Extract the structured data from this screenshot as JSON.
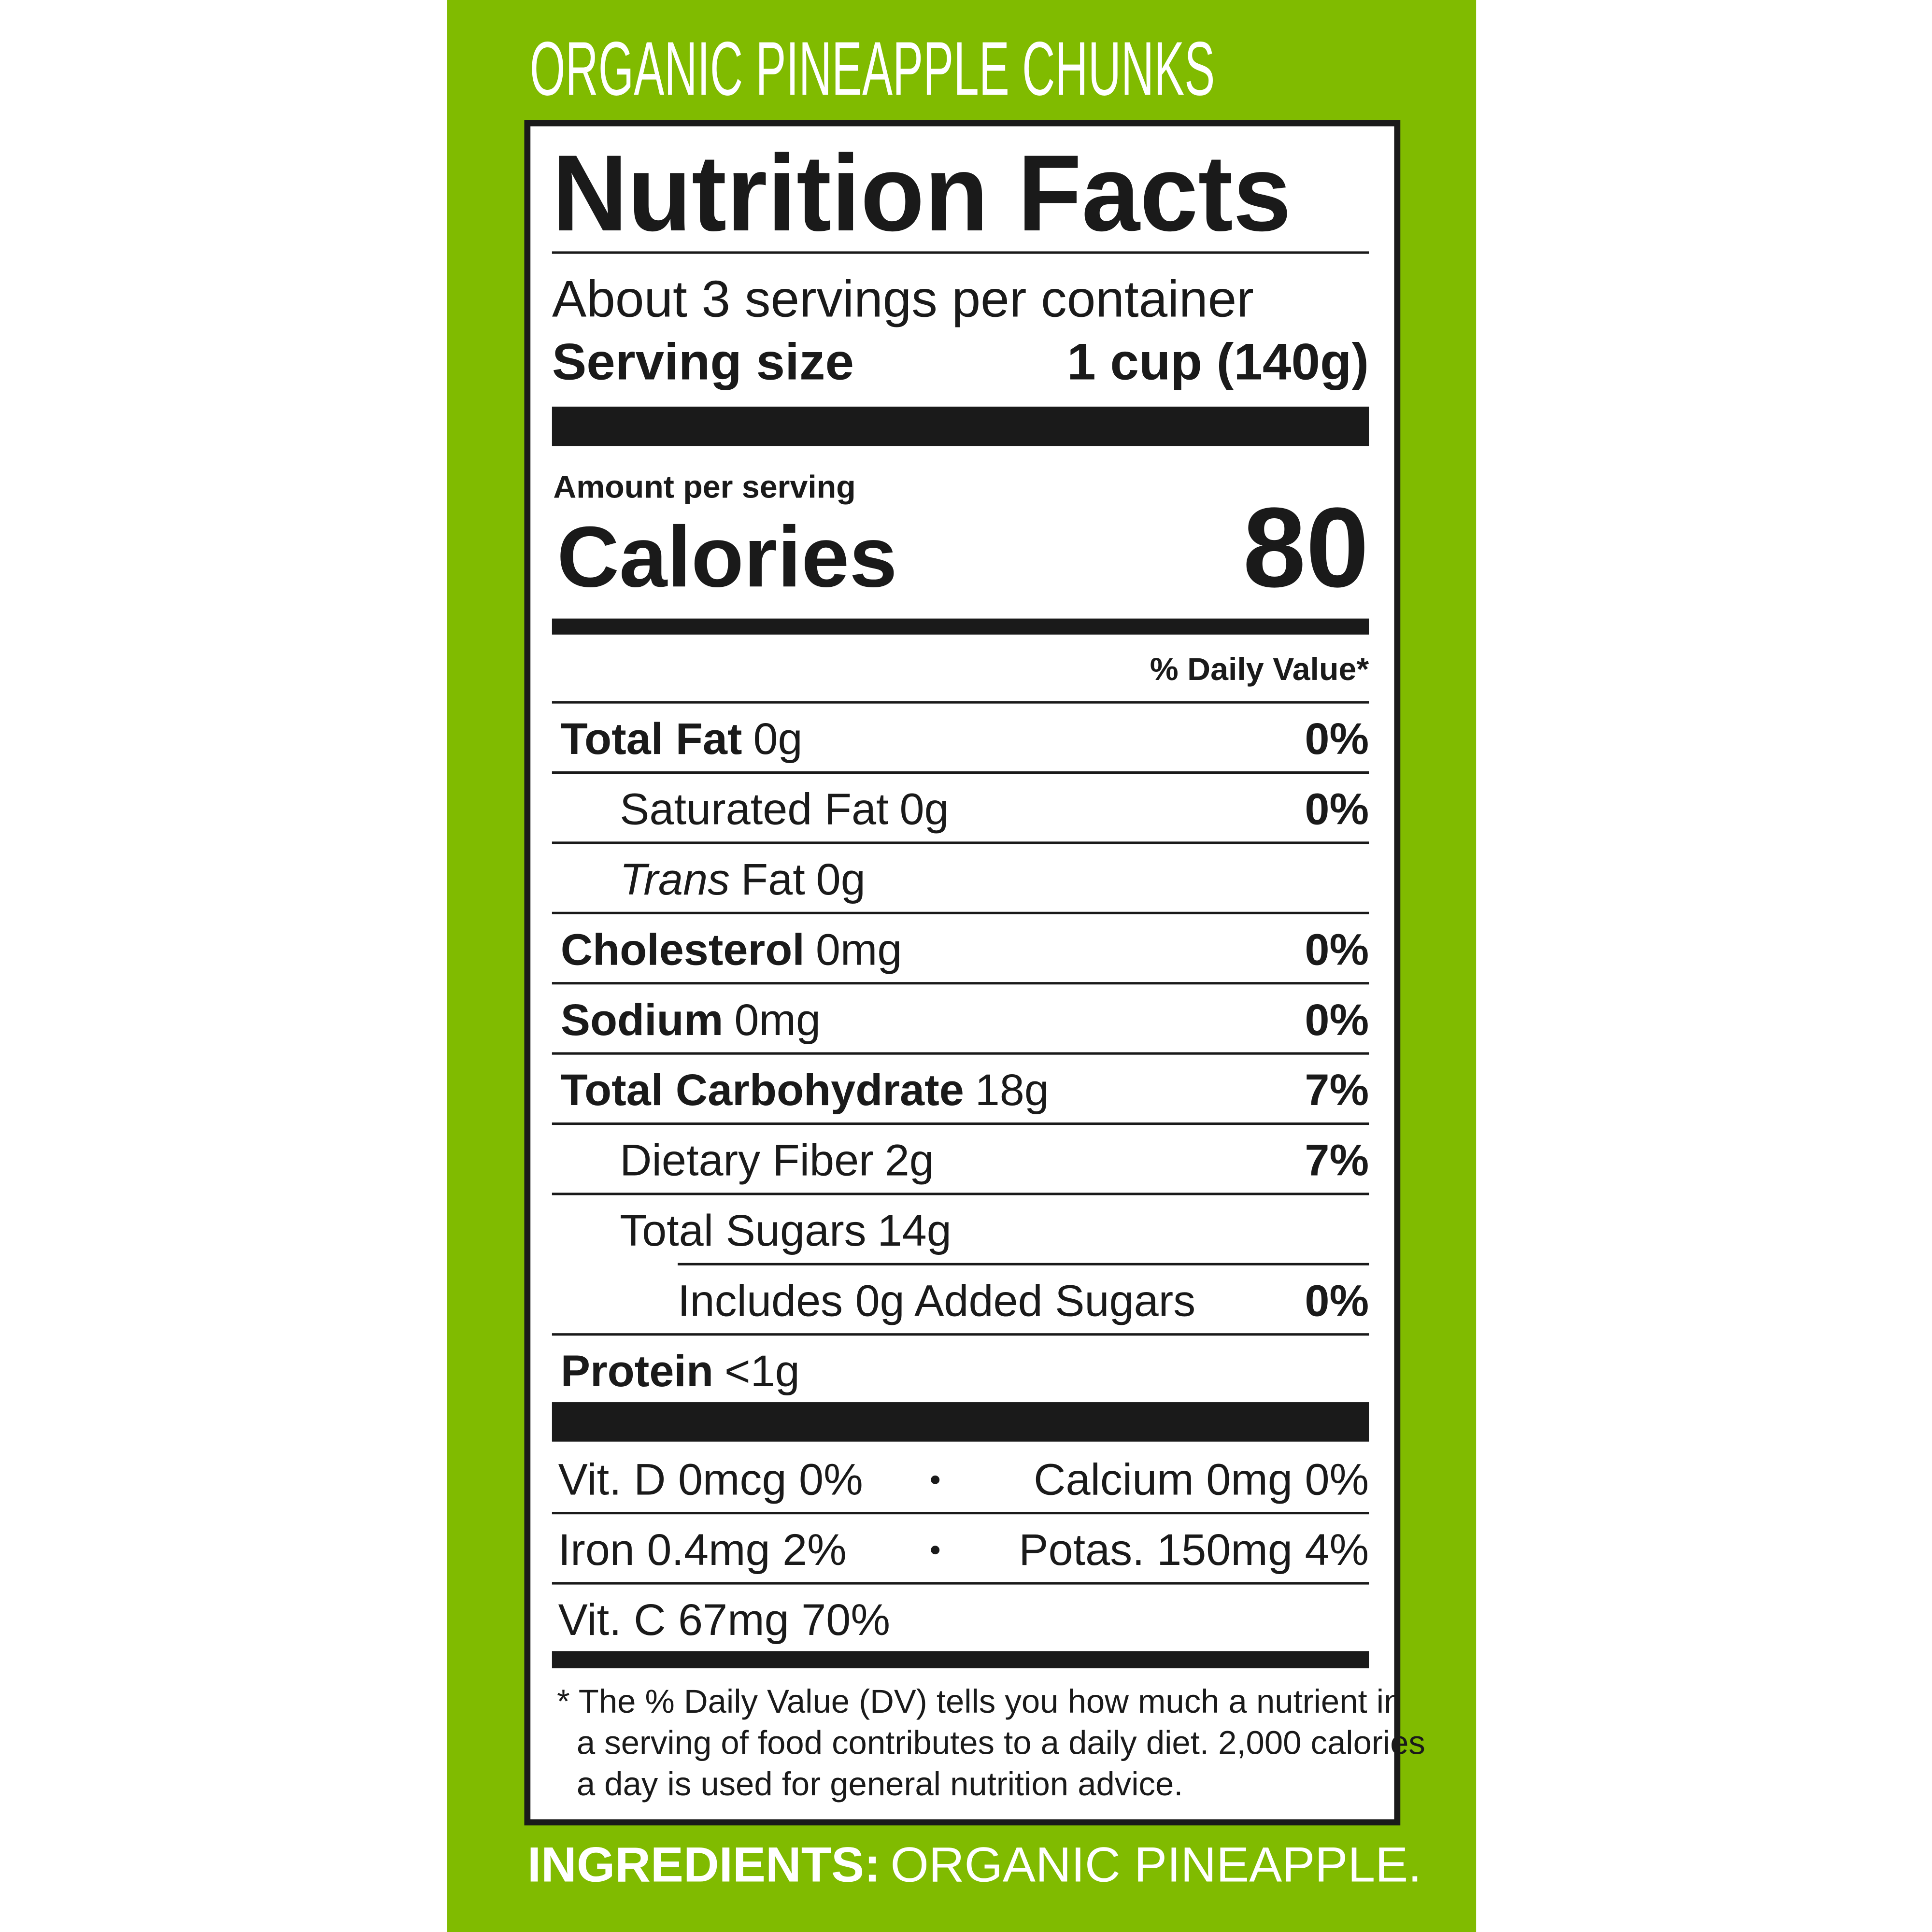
{
  "header": {
    "title": "ORGANIC PINEAPPLE CHUNKS"
  },
  "label": {
    "title": "Nutrition Facts",
    "servings": "About 3 servings per container",
    "serving_size_label": "Serving size",
    "serving_size_value": "1 cup (140g)",
    "amount_per_serving": "Amount per serving",
    "calories_label": "Calories",
    "calories_value": 80,
    "daily_value_header": "% Daily Value*",
    "nutrients": [
      {
        "name": "Total Fat",
        "amount": "0g",
        "dv": "0%"
      },
      {
        "name": "Saturated Fat",
        "amount": "0g",
        "dv": "0%"
      },
      {
        "name_italic": "Trans",
        "name": "Fat",
        "amount": "0g"
      },
      {
        "name": "Cholesterol",
        "amount": "0mg",
        "dv": "0%"
      },
      {
        "name": "Sodium",
        "amount": "0mg",
        "dv": "0%"
      },
      {
        "name": "Total Carbohydrate",
        "amount": "18g",
        "dv": "7%"
      },
      {
        "name": "Dietary Fiber",
        "amount": "2g",
        "dv": "7%"
      },
      {
        "name": "Total Sugars",
        "amount": "14g"
      },
      {
        "name": "Includes 0g Added Sugars",
        "dv": "0%"
      },
      {
        "name": "Protein",
        "amount": "<1g"
      }
    ],
    "vitamins": [
      {
        "left": "Vit. D 0mcg 0%",
        "right": "Calcium 0mg 0%"
      },
      {
        "left": "Iron 0.4mg 2%",
        "right": "Potas. 150mg 4%"
      },
      {
        "left": "Vit. C 67mg 70%"
      }
    ],
    "footnote": [
      "* The % Daily Value (DV) tells you how much a nutrient in",
      "a serving of food contributes to a daily diet. 2,000 calories",
      "a day is used for general nutrition advice."
    ]
  },
  "ingredients": {
    "label": "INGREDIENTS:",
    "text": "ORGANIC PINEAPPLE."
  }
}
